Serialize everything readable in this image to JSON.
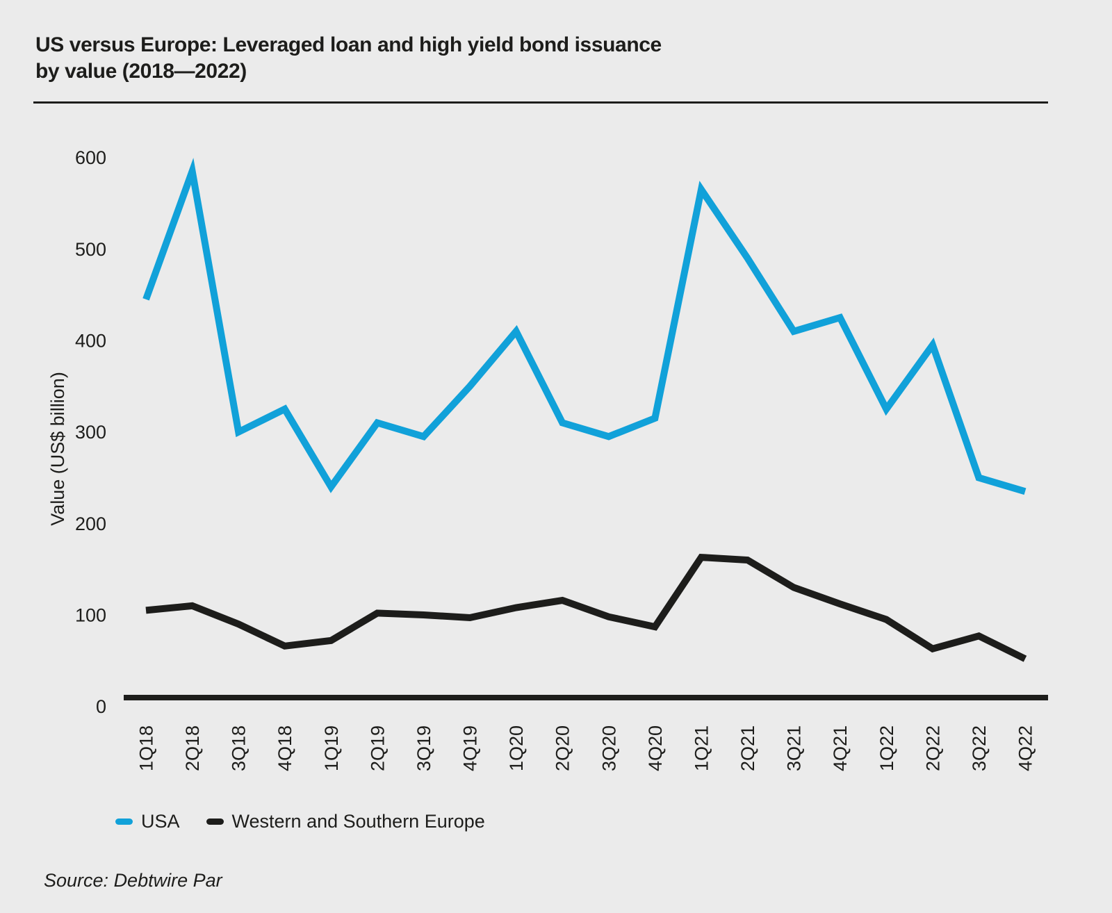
{
  "page": {
    "background": "#ebebeb",
    "text_color": "#1d1d1b"
  },
  "title": {
    "line1": "US versus Europe: Leveraged loan and high yield bond issuance",
    "line2": "by value (2018—2022)"
  },
  "legend": [
    {
      "label": "USA",
      "color": "#11a1d9"
    },
    {
      "label": "Western and Southern Europe",
      "color": "#1d1d1b"
    }
  ],
  "source": {
    "prefix": "Source: ",
    "name": "Debtwire Par"
  },
  "chart_data": {
    "type": "line",
    "title": "US versus Europe: Leveraged loan and high yield bond issuance by value (2018—2022)",
    "xlabel": "",
    "ylabel": "Value (US$ billion)",
    "ylim": [
      0,
      600
    ],
    "yticks": [
      0,
      100,
      200,
      300,
      400,
      500,
      600
    ],
    "grid": false,
    "legend_position": "bottom",
    "categories": [
      "1Q18",
      "2Q18",
      "3Q18",
      "4Q18",
      "1Q19",
      "2Q19",
      "3Q19",
      "4Q19",
      "1Q20",
      "2Q20",
      "3Q20",
      "4Q20",
      "1Q21",
      "2Q21",
      "3Q21",
      "4Q21",
      "1Q22",
      "2Q22",
      "3Q22",
      "4Q22"
    ],
    "series": [
      {
        "name": "USA",
        "color": "#11a1d9",
        "values": [
          445,
          585,
          300,
          325,
          240,
          310,
          295,
          350,
          410,
          310,
          295,
          315,
          565,
          490,
          410,
          425,
          325,
          395,
          250,
          235
        ]
      },
      {
        "name": "Western and Southern Europe",
        "color": "#1d1d1b",
        "values": [
          105,
          110,
          90,
          66,
          72,
          102,
          100,
          97,
          108,
          116,
          98,
          87,
          163,
          160,
          130,
          112,
          95,
          63,
          77,
          52
        ]
      }
    ]
  }
}
